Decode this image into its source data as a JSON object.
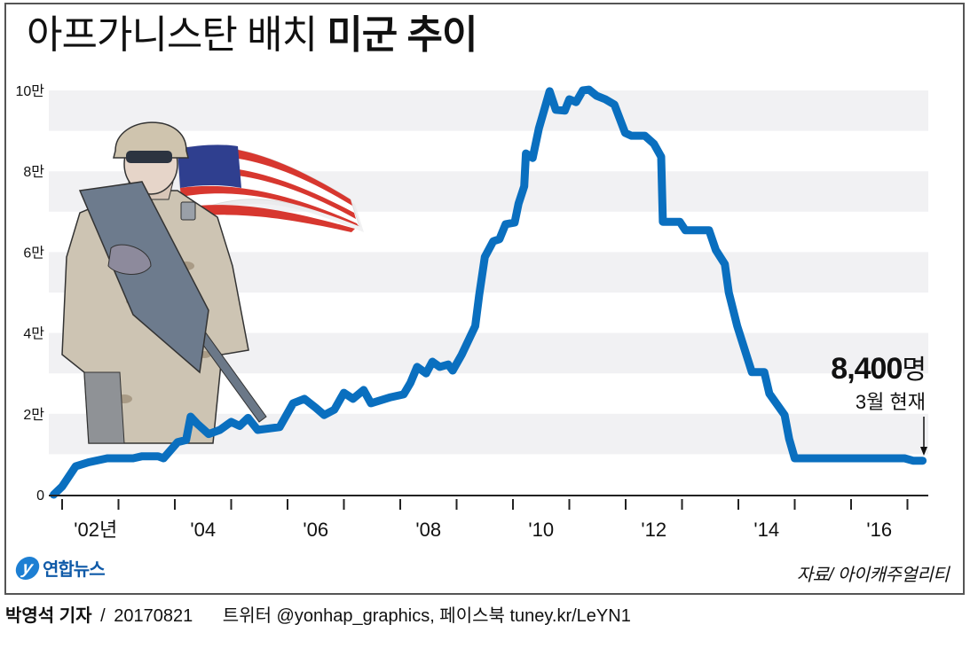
{
  "title": {
    "light": "아프가니스탄 배치 ",
    "bold": "미군 추이"
  },
  "annotation": {
    "value": "8,400",
    "unit": "명",
    "sub": "3월 현재",
    "arrow": "down-arrow-icon"
  },
  "source": "자료/ 아이캐주얼리티",
  "logo": {
    "mark": "y",
    "text": "연합뉴스"
  },
  "byline": {
    "author": "박영석 기자",
    "sep": "/",
    "date": "20170821",
    "social": "트위터 @yonhap_graphics, 페이스북 tuney.kr/LeYN1"
  },
  "illustration": {
    "icon": "soldier-with-us-flag-illustration"
  },
  "colors": {
    "line": "#0a6fbf",
    "band": "#f1f1f3",
    "axis": "#222222",
    "frame": "#555555"
  },
  "chart_data": {
    "type": "line",
    "title": "아프가니스탄 배치 미군 추이",
    "xlabel": "",
    "ylabel": "",
    "ylim": [
      0,
      100000
    ],
    "xlim": [
      2002,
      2017.3
    ],
    "grid": "alternating horizontal bands",
    "legend": "none",
    "y_ticks": [
      {
        "value": 0,
        "label": "0"
      },
      {
        "value": 20000,
        "label": "2만"
      },
      {
        "value": 40000,
        "label": "4만"
      },
      {
        "value": 60000,
        "label": "6만"
      },
      {
        "value": 80000,
        "label": "8만"
      },
      {
        "value": 100000,
        "label": "10만"
      }
    ],
    "x_tick_years": [
      2002,
      2003,
      2004,
      2005,
      2006,
      2007,
      2008,
      2009,
      2010,
      2011,
      2012,
      2013,
      2014,
      2015,
      2016,
      2017
    ],
    "x_labels": [
      {
        "year": 2002,
        "label": "'02년"
      },
      {
        "year": 2004,
        "label": "'04"
      },
      {
        "year": 2006,
        "label": "'06"
      },
      {
        "year": 2008,
        "label": "'08"
      },
      {
        "year": 2010,
        "label": "'10"
      },
      {
        "year": 2012,
        "label": "'12"
      },
      {
        "year": 2014,
        "label": "'14"
      },
      {
        "year": 2016,
        "label": "'16"
      }
    ],
    "series": [
      {
        "name": "아프가니스탄 배치 미군 수",
        "unit": "명",
        "points": [
          [
            2001.85,
            0
          ],
          [
            2002.0,
            2000
          ],
          [
            2002.24,
            7000
          ],
          [
            2002.47,
            8000
          ],
          [
            2002.8,
            9000
          ],
          [
            2003.26,
            9000
          ],
          [
            2003.42,
            9500
          ],
          [
            2003.7,
            9500
          ],
          [
            2003.8,
            9000
          ],
          [
            2004.05,
            13000
          ],
          [
            2004.2,
            13500
          ],
          [
            2004.28,
            19300
          ],
          [
            2004.4,
            17500
          ],
          [
            2004.6,
            15000
          ],
          [
            2004.8,
            16000
          ],
          [
            2005.0,
            18000
          ],
          [
            2005.15,
            17000
          ],
          [
            2005.3,
            19000
          ],
          [
            2005.47,
            16000
          ],
          [
            2005.86,
            16700
          ],
          [
            2006.1,
            22600
          ],
          [
            2006.3,
            23700
          ],
          [
            2006.5,
            21500
          ],
          [
            2006.65,
            19700
          ],
          [
            2006.83,
            21000
          ],
          [
            2007.0,
            25200
          ],
          [
            2007.16,
            23700
          ],
          [
            2007.35,
            25900
          ],
          [
            2007.48,
            22600
          ],
          [
            2007.83,
            24100
          ],
          [
            2008.06,
            24800
          ],
          [
            2008.18,
            27600
          ],
          [
            2008.3,
            31600
          ],
          [
            2008.46,
            30000
          ],
          [
            2008.57,
            32900
          ],
          [
            2008.7,
            31600
          ],
          [
            2008.85,
            32200
          ],
          [
            2008.93,
            30700
          ],
          [
            2009.09,
            34600
          ],
          [
            2009.33,
            41700
          ],
          [
            2009.4,
            49300
          ],
          [
            2009.5,
            58800
          ],
          [
            2009.65,
            62700
          ],
          [
            2009.76,
            63200
          ],
          [
            2009.87,
            66900
          ],
          [
            2010.03,
            67300
          ],
          [
            2010.1,
            72000
          ],
          [
            2010.2,
            76300
          ],
          [
            2010.23,
            84400
          ],
          [
            2010.35,
            83300
          ],
          [
            2010.46,
            90600
          ],
          [
            2010.65,
            99800
          ],
          [
            2010.76,
            95200
          ],
          [
            2010.92,
            95000
          ],
          [
            2011.0,
            97800
          ],
          [
            2011.12,
            97100
          ],
          [
            2011.24,
            100000
          ],
          [
            2011.35,
            100200
          ],
          [
            2011.48,
            98700
          ],
          [
            2011.64,
            97800
          ],
          [
            2011.8,
            96500
          ],
          [
            2011.99,
            89500
          ],
          [
            2012.1,
            88800
          ],
          [
            2012.34,
            88800
          ],
          [
            2012.5,
            86800
          ],
          [
            2012.63,
            83600
          ],
          [
            2012.66,
            67500
          ],
          [
            2012.96,
            67500
          ],
          [
            2013.06,
            65400
          ],
          [
            2013.48,
            65400
          ],
          [
            2013.6,
            60500
          ],
          [
            2013.76,
            57000
          ],
          [
            2013.83,
            50000
          ],
          [
            2013.98,
            41700
          ],
          [
            2014.24,
            30300
          ],
          [
            2014.46,
            30300
          ],
          [
            2014.55,
            25000
          ],
          [
            2014.82,
            19700
          ],
          [
            2014.9,
            13800
          ],
          [
            2015.0,
            9000
          ],
          [
            2016.95,
            9000
          ],
          [
            2017.1,
            8400
          ],
          [
            2017.27,
            8400
          ]
        ]
      }
    ],
    "annotations": [
      {
        "x": 2017.27,
        "y": 8400,
        "text": "8,400명",
        "subtext": "3월 현재"
      }
    ]
  }
}
